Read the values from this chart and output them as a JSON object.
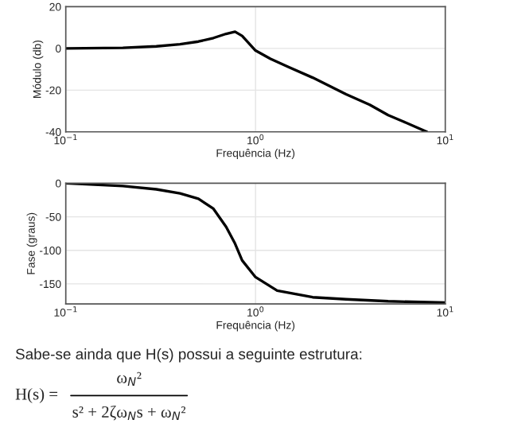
{
  "chart_data": [
    {
      "type": "line",
      "xlabel": "Frequência (Hz)",
      "ylabel": "Módulo (db)",
      "log": "x",
      "grid": true,
      "xlim": [
        0.1,
        10
      ],
      "xticks": [
        {
          "value": 0.1,
          "label": "10$^{−1}$"
        },
        {
          "value": 1,
          "label": "10$^{0}$"
        },
        {
          "value": 10,
          "label": "10$^{1}$"
        }
      ],
      "ylim": [
        -40,
        20
      ],
      "yticks": [
        -40,
        -20,
        0,
        20
      ],
      "x": [
        0.1,
        0.2,
        0.3,
        0.4,
        0.5,
        0.6,
        0.7,
        0.78,
        0.85,
        1.0,
        1.2,
        1.5,
        2,
        3,
        4,
        5,
        6,
        8
      ],
      "series": [
        {
          "color": "#000000",
          "values": [
            0,
            0.3,
            1,
            2,
            3.3,
            5,
            7,
            8,
            6,
            -1,
            -5,
            -9,
            -14,
            -22,
            -27,
            -32,
            -35,
            -40
          ]
        }
      ]
    },
    {
      "type": "line",
      "xlabel": "Frequência (Hz)",
      "ylabel": "Fase (graus)",
      "log": "x",
      "grid": true,
      "xlim": [
        0.1,
        10
      ],
      "xticks": [
        {
          "value": 0.1,
          "label": "10$^{−1}$"
        },
        {
          "value": 1,
          "label": "10$^{0}$"
        },
        {
          "value": 10,
          "label": "10$^{1}$"
        }
      ],
      "ylim": [
        -180,
        0
      ],
      "yticks": [
        -150,
        -100,
        -50,
        0
      ],
      "x": [
        0.1,
        0.2,
        0.3,
        0.4,
        0.5,
        0.6,
        0.7,
        0.78,
        0.85,
        1.0,
        1.3,
        2,
        3,
        5,
        10
      ],
      "series": [
        {
          "color": "#000000",
          "values": [
            0,
            -4,
            -9,
            -15,
            -23,
            -38,
            -65,
            -90,
            -115,
            -140,
            -160,
            -170,
            -173,
            -176,
            -178
          ]
        }
      ],
      "annotations": [
        "Sabe-se ainda que H(s) possui a seguinte estrutura:",
        "H(s) =",
        "ω$_{N}$²",
        "s² + 2ζω$_{N}$s + ω$_{N}$²"
      ]
    }
  ]
}
